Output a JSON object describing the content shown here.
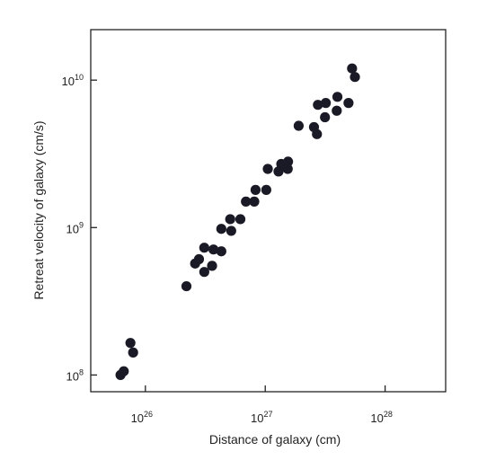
{
  "chart_data": {
    "type": "scatter",
    "title": "",
    "xlabel": "Distance of galaxy (cm)",
    "ylabel": "Retreat velocity of galaxy (cm/s)",
    "xscale": "log",
    "yscale": "log",
    "xlim": [
      3.5e+25,
      3.2e+28
    ],
    "ylim": [
      77000000.0,
      22000000000.0
    ],
    "grid": false,
    "legend": "none",
    "x_ticks": [
      {
        "value": 1e+26,
        "base": "10",
        "exp": "26"
      },
      {
        "value": 1e+27,
        "base": "10",
        "exp": "27"
      },
      {
        "value": 1e+28,
        "base": "10",
        "exp": "28"
      }
    ],
    "y_ticks": [
      {
        "value": 100000000.0,
        "base": "10",
        "exp": "8"
      },
      {
        "value": 1000000000.0,
        "base": "10",
        "exp": "9"
      },
      {
        "value": 10000000000.0,
        "base": "10",
        "exp": "10"
      }
    ],
    "marker_color": "#1a1a26",
    "points": [
      {
        "x": 6.2e+25,
        "y": 100000000.0
      },
      {
        "x": 6.6e+25,
        "y": 106000000.0
      },
      {
        "x": 7.5e+25,
        "y": 165000000.0
      },
      {
        "x": 7.9e+25,
        "y": 142000000.0
      },
      {
        "x": 2.2e+26,
        "y": 400000000.0
      },
      {
        "x": 2.6e+26,
        "y": 570000000.0
      },
      {
        "x": 2.8e+26,
        "y": 610000000.0
      },
      {
        "x": 3.1e+26,
        "y": 500000000.0
      },
      {
        "x": 3.1e+26,
        "y": 730000000.0
      },
      {
        "x": 3.6e+26,
        "y": 550000000.0
      },
      {
        "x": 3.7e+26,
        "y": 710000000.0
      },
      {
        "x": 4.3e+26,
        "y": 980000000.0
      },
      {
        "x": 4.3e+26,
        "y": 690000000.0
      },
      {
        "x": 5.1e+26,
        "y": 1140000000.0
      },
      {
        "x": 5.2e+26,
        "y": 950000000.0
      },
      {
        "x": 6.2e+26,
        "y": 1140000000.0
      },
      {
        "x": 6.9e+26,
        "y": 1500000000.0
      },
      {
        "x": 8.1e+26,
        "y": 1500000000.0
      },
      {
        "x": 8.3e+26,
        "y": 1800000000.0
      },
      {
        "x": 1.02e+27,
        "y": 1800000000.0
      },
      {
        "x": 1.05e+27,
        "y": 2500000000.0
      },
      {
        "x": 1.29e+27,
        "y": 2400000000.0
      },
      {
        "x": 1.36e+27,
        "y": 2700000000.0
      },
      {
        "x": 1.54e+27,
        "y": 2500000000.0
      },
      {
        "x": 1.55e+27,
        "y": 2800000000.0
      },
      {
        "x": 1.9e+27,
        "y": 4900000000.0
      },
      {
        "x": 2.55e+27,
        "y": 4800000000.0
      },
      {
        "x": 2.7e+27,
        "y": 4300000000.0
      },
      {
        "x": 2.75e+27,
        "y": 6800000000.0
      },
      {
        "x": 3.15e+27,
        "y": 5600000000.0
      },
      {
        "x": 3.2e+27,
        "y": 7000000000.0
      },
      {
        "x": 3.95e+27,
        "y": 6200000000.0
      },
      {
        "x": 4e+27,
        "y": 7700000000.0
      },
      {
        "x": 4.95e+27,
        "y": 7000000000.0
      },
      {
        "x": 5.3e+27,
        "y": 12000000000.0
      },
      {
        "x": 5.6e+27,
        "y": 10500000000.0
      }
    ]
  }
}
